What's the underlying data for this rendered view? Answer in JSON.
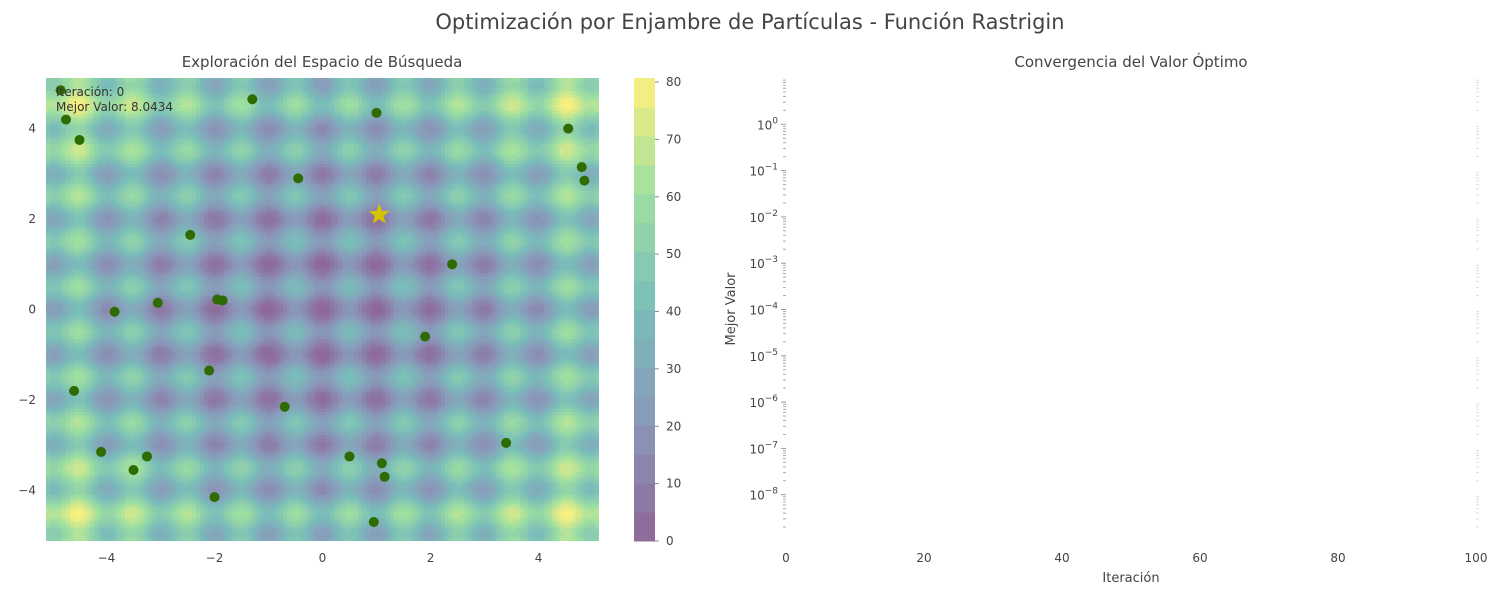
{
  "figure": {
    "suptitle": "Optimización por Enjambre de Partículas - Función Rastrigin"
  },
  "chart_data": [
    {
      "type": "heatmap",
      "title": "Exploración del Espacio de Búsqueda",
      "xlabel": "",
      "ylabel": "",
      "function": "Rastrigin",
      "xlim": [
        -5.12,
        5.12
      ],
      "ylim": [
        -5.12,
        5.12
      ],
      "xticks": [
        -4,
        -2,
        0,
        2,
        4
      ],
      "yticks": [
        -4,
        -2,
        0,
        2,
        4
      ],
      "colormap": "viridis",
      "colorbar": {
        "ticks": [
          0,
          10,
          20,
          30,
          40,
          50,
          60,
          70,
          80
        ],
        "range": [
          0,
          80.7
        ]
      },
      "annotations": {
        "iteration_text": "Iteración: 0",
        "best_value_text": "Mejor Valor: 8.0434"
      },
      "best_position": {
        "x": 1.05,
        "y": 2.1,
        "marker": "star",
        "color": "#d4c400"
      },
      "particle_color": "#2e6b00",
      "particles": [
        {
          "x": -4.85,
          "y": 4.85
        },
        {
          "x": -4.75,
          "y": 4.2
        },
        {
          "x": -4.5,
          "y": 3.75
        },
        {
          "x": -1.3,
          "y": 4.65
        },
        {
          "x": 1.0,
          "y": 4.35
        },
        {
          "x": 4.55,
          "y": 4.0
        },
        {
          "x": 4.8,
          "y": 3.15
        },
        {
          "x": 4.85,
          "y": 2.85
        },
        {
          "x": -0.45,
          "y": 2.9
        },
        {
          "x": -2.45,
          "y": 1.65
        },
        {
          "x": 2.4,
          "y": 1.0
        },
        {
          "x": -3.05,
          "y": 0.15
        },
        {
          "x": -1.95,
          "y": 0.22
        },
        {
          "x": -1.85,
          "y": 0.2
        },
        {
          "x": -3.85,
          "y": -0.05
        },
        {
          "x": 1.9,
          "y": -0.6
        },
        {
          "x": -2.1,
          "y": -1.35
        },
        {
          "x": -4.6,
          "y": -1.8
        },
        {
          "x": -0.7,
          "y": -2.15
        },
        {
          "x": 3.4,
          "y": -2.95
        },
        {
          "x": -4.1,
          "y": -3.15
        },
        {
          "x": -3.25,
          "y": -3.25
        },
        {
          "x": -3.5,
          "y": -3.55
        },
        {
          "x": 0.5,
          "y": -3.25
        },
        {
          "x": 1.1,
          "y": -3.4
        },
        {
          "x": 1.15,
          "y": -3.7
        },
        {
          "x": -2.0,
          "y": -4.15
        },
        {
          "x": 0.95,
          "y": -4.7
        }
      ]
    },
    {
      "type": "line",
      "title": "Convergencia del Valor Óptimo",
      "xlabel": "Iteración",
      "ylabel": "Mejor Valor",
      "xlim": [
        0,
        100
      ],
      "xticks": [
        0,
        20,
        40,
        60,
        80,
        100
      ],
      "yscale": "log",
      "ylim_exponents": [
        -9,
        1
      ],
      "ytick_exponents": [
        0,
        -1,
        -2,
        -3,
        -4,
        -5,
        -6,
        -7,
        -8
      ],
      "series": [
        {
          "x": [],
          "y": []
        }
      ]
    }
  ]
}
